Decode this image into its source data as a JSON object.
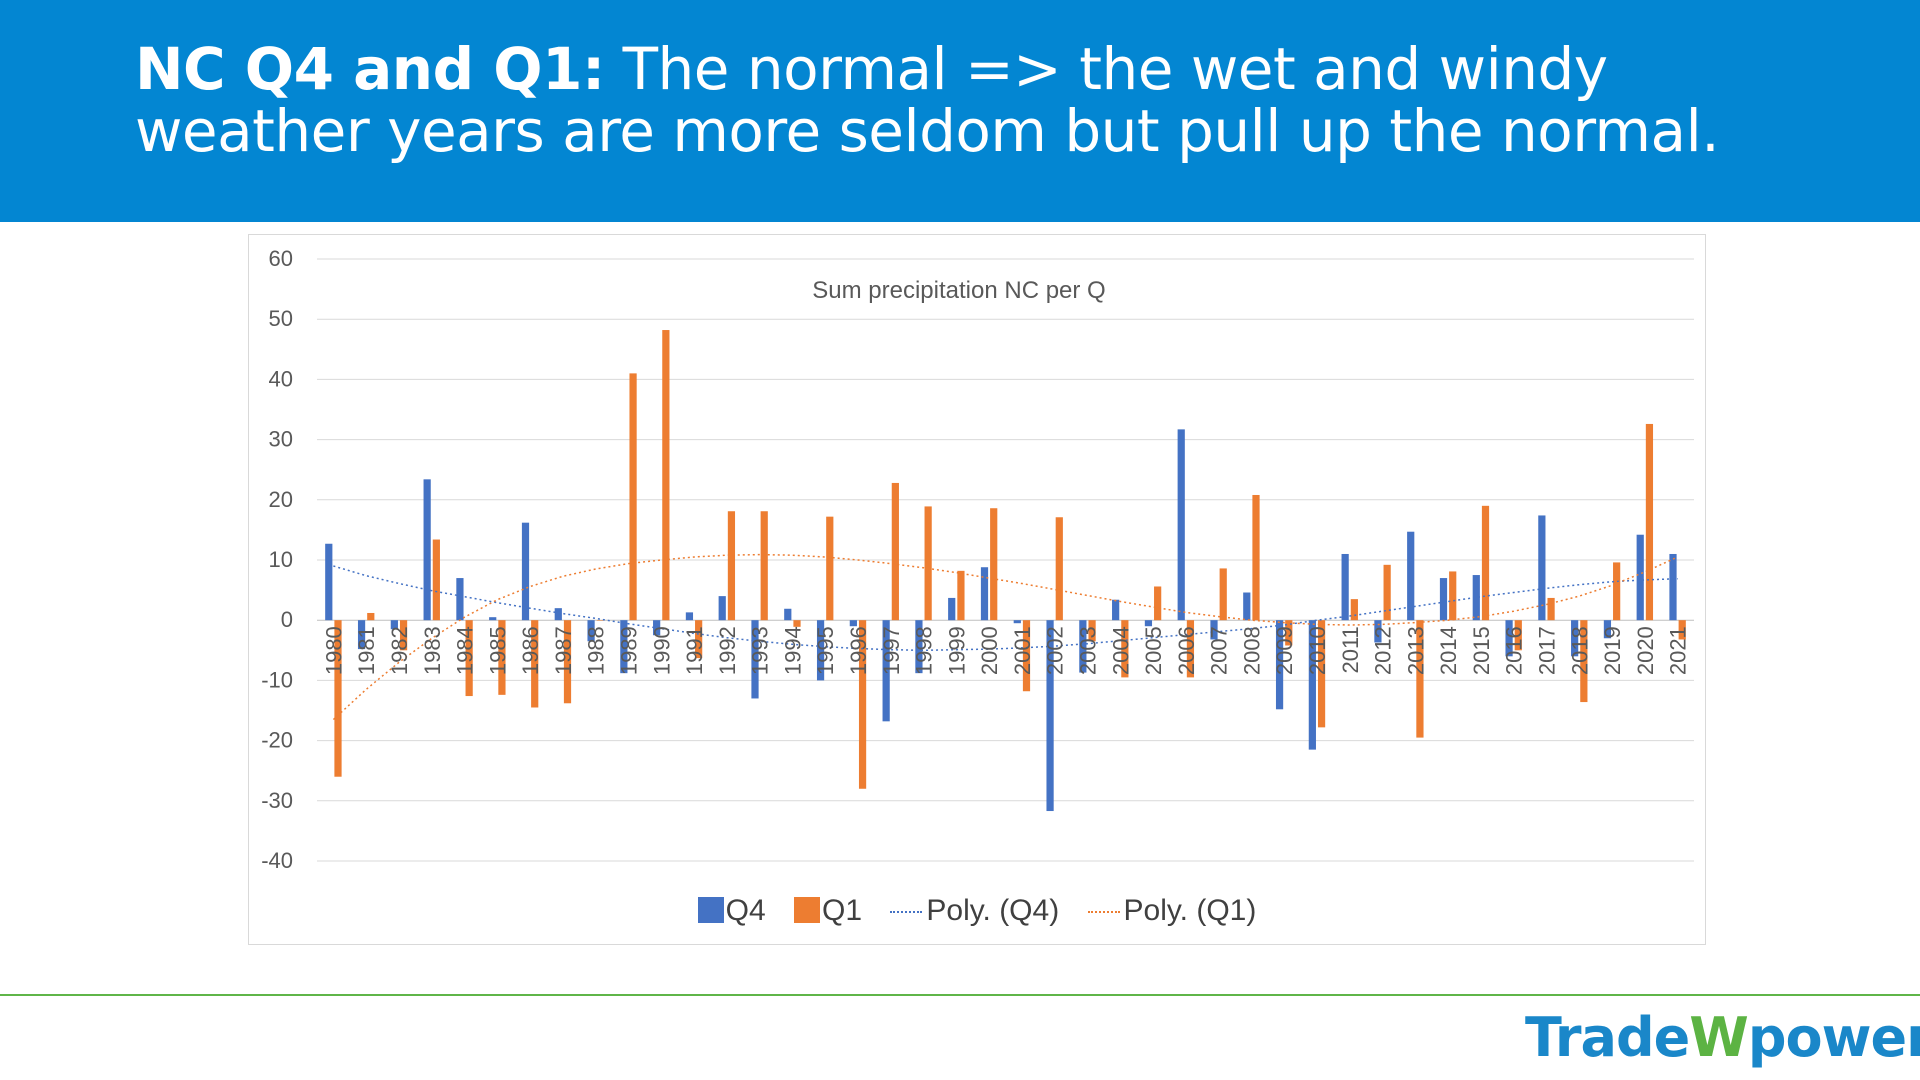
{
  "slide": {
    "title_bold": "NC Q4 and Q1:",
    "title_rest": " The normal => the wet and windy weather years are more seldom but pull up the normal."
  },
  "logo": {
    "part1": "Trade",
    "part2": "W",
    "part3": "power"
  },
  "colors": {
    "banner": "#0386d2",
    "q4": "#4472c4",
    "q1": "#ed7d31",
    "divider": "#5fb548"
  },
  "chart_data": {
    "type": "bar",
    "title": "Sum precipitation NC per Q",
    "xlabel": "",
    "ylabel": "",
    "ylim": [
      -40,
      60
    ],
    "yticks": [
      60,
      50,
      40,
      30,
      20,
      10,
      0,
      -10,
      -20,
      -30,
      -40
    ],
    "grid": true,
    "legend_position": "bottom",
    "categories": [
      "1980",
      "1981",
      "1982",
      "1983",
      "1984",
      "1985",
      "1986",
      "1987",
      "1988",
      "1989",
      "1990",
      "1991",
      "1992",
      "1993",
      "1994",
      "1995",
      "1996",
      "1997",
      "1998",
      "1999",
      "2000",
      "2001",
      "2002",
      "2003",
      "2004",
      "2005",
      "2006",
      "2007",
      "2008",
      "2009",
      "2010",
      "2011",
      "2012",
      "2013",
      "2014",
      "2015",
      "2016",
      "2017",
      "2018",
      "2019",
      "2020",
      "2021"
    ],
    "series": [
      {
        "name": "Q4",
        "color": "#4472c4",
        "values": [
          12.7,
          -4.8,
          -1.5,
          23.4,
          7,
          0.5,
          16.2,
          2,
          -3.5,
          -8.8,
          -2.5,
          1.3,
          4,
          -13,
          1.9,
          -10,
          -1,
          -16.8,
          -8.8,
          3.7,
          8.8,
          -0.5,
          -31.7,
          -8.7,
          3.4,
          -1,
          31.7,
          -3.2,
          4.6,
          -14.8,
          -21.5,
          11,
          -3.7,
          14.7,
          7,
          7.5,
          -6,
          17.4,
          -6,
          -3,
          14.2,
          11
        ]
      },
      {
        "name": "Q1",
        "color": "#ed7d31",
        "values": [
          -26,
          1.2,
          -5,
          13.4,
          -12.6,
          -12.4,
          -14.5,
          -13.8,
          0,
          41,
          48.2,
          -6.3,
          18.1,
          18.1,
          -1.1,
          17.2,
          -28,
          22.8,
          18.9,
          8.2,
          18.6,
          -11.8,
          17.1,
          -3.5,
          -9.5,
          5.6,
          -9.5,
          8.6,
          20.8,
          -4.2,
          -17.8,
          3.5,
          9.2,
          -19.5,
          8.1,
          19,
          -5,
          3.7,
          -13.6,
          9.6,
          32.6,
          -3.2
        ]
      }
    ],
    "trendlines": [
      {
        "name": "Poly. (Q4)",
        "color": "#4472c4",
        "values": [
          9,
          7.4,
          6.1,
          4.9,
          3.9,
          2.9,
          2,
          1.1,
          0.3,
          -0.6,
          -1.4,
          -2.2,
          -2.9,
          -3.5,
          -4,
          -4.4,
          -4.7,
          -4.9,
          -5,
          -4.9,
          -4.8,
          -4.6,
          -4.3,
          -3.9,
          -3.4,
          -2.9,
          -2.4,
          -1.9,
          -1.4,
          -0.8,
          0,
          0.7,
          1.5,
          2.3,
          3.1,
          3.9,
          4.6,
          5.3,
          5.9,
          6.4,
          6.7,
          6.9
        ]
      },
      {
        "name": "Poly. (Q1)",
        "color": "#ed7d31",
        "values": [
          -16.5,
          -11.5,
          -7,
          -3,
          0.5,
          3.4,
          5.6,
          7.3,
          8.5,
          9.4,
          10,
          10.5,
          10.8,
          10.9,
          10.8,
          10.5,
          10,
          9.4,
          8.7,
          7.9,
          7,
          6.1,
          5.1,
          4.1,
          3.1,
          2.2,
          1.3,
          0.6,
          0,
          -0.4,
          -0.7,
          -0.8,
          -0.7,
          -0.4,
          0,
          0.6,
          1.5,
          2.6,
          4,
          5.8,
          8,
          10.5
        ]
      }
    ]
  }
}
